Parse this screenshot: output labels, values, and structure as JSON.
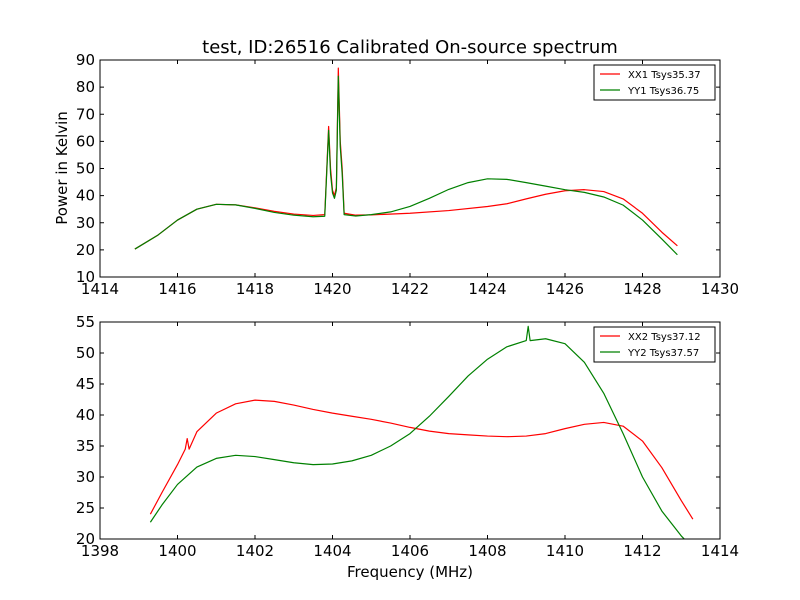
{
  "chart_data": [
    {
      "type": "line",
      "title": "test, ID:26516 Calibrated On-source spectrum",
      "xlabel": "",
      "ylabel": "Power in Kelvin",
      "xlim": [
        1414,
        1430
      ],
      "ylim": [
        10,
        90
      ],
      "xticks": [
        1414,
        1416,
        1418,
        1420,
        1422,
        1424,
        1426,
        1428,
        1430
      ],
      "yticks": [
        10,
        20,
        30,
        40,
        50,
        60,
        70,
        80,
        90
      ],
      "legend_position": "top-right",
      "series": [
        {
          "name": "XX1 Tsys35.37",
          "color": "#ff0000",
          "points": [
            [
              1414.9,
              20.3
            ],
            [
              1415.5,
              25.5
            ],
            [
              1416.0,
              31.0
            ],
            [
              1416.5,
              35.0
            ],
            [
              1417.0,
              36.8
            ],
            [
              1417.5,
              36.6
            ],
            [
              1418.0,
              35.5
            ],
            [
              1418.5,
              34.2
            ],
            [
              1419.0,
              33.2
            ],
            [
              1419.5,
              32.7
            ],
            [
              1419.8,
              33.0
            ],
            [
              1419.9,
              65.5
            ],
            [
              1419.95,
              50.0
            ],
            [
              1420.0,
              42.0
            ],
            [
              1420.05,
              40.0
            ],
            [
              1420.1,
              43.0
            ],
            [
              1420.15,
              87.0
            ],
            [
              1420.2,
              60.0
            ],
            [
              1420.25,
              50.0
            ],
            [
              1420.3,
              33.5
            ],
            [
              1420.6,
              32.8
            ],
            [
              1421.0,
              32.9
            ],
            [
              1422.0,
              33.5
            ],
            [
              1423.0,
              34.5
            ],
            [
              1424.0,
              36.0
            ],
            [
              1424.5,
              37.0
            ],
            [
              1425.0,
              38.8
            ],
            [
              1425.5,
              40.5
            ],
            [
              1426.0,
              41.8
            ],
            [
              1426.5,
              42.2
            ],
            [
              1427.0,
              41.5
            ],
            [
              1427.5,
              38.8
            ],
            [
              1428.0,
              33.5
            ],
            [
              1428.5,
              26.5
            ],
            [
              1428.9,
              21.5
            ]
          ]
        },
        {
          "name": "YY1 Tsys36.75",
          "color": "#008000",
          "points": [
            [
              1414.9,
              20.3
            ],
            [
              1415.5,
              25.5
            ],
            [
              1416.0,
              31.0
            ],
            [
              1416.5,
              35.0
            ],
            [
              1417.0,
              36.8
            ],
            [
              1417.5,
              36.6
            ],
            [
              1418.0,
              35.3
            ],
            [
              1418.5,
              33.8
            ],
            [
              1419.0,
              32.8
            ],
            [
              1419.5,
              32.2
            ],
            [
              1419.8,
              32.4
            ],
            [
              1419.9,
              64.0
            ],
            [
              1419.95,
              48.0
            ],
            [
              1420.0,
              41.0
            ],
            [
              1420.05,
              39.0
            ],
            [
              1420.1,
              42.0
            ],
            [
              1420.15,
              84.0
            ],
            [
              1420.2,
              58.0
            ],
            [
              1420.25,
              48.0
            ],
            [
              1420.3,
              33.0
            ],
            [
              1420.6,
              32.5
            ],
            [
              1421.0,
              33.0
            ],
            [
              1421.5,
              34.0
            ],
            [
              1422.0,
              36.0
            ],
            [
              1422.5,
              39.0
            ],
            [
              1423.0,
              42.3
            ],
            [
              1423.5,
              44.8
            ],
            [
              1424.0,
              46.2
            ],
            [
              1424.5,
              46.0
            ],
            [
              1425.0,
              44.8
            ],
            [
              1425.5,
              43.5
            ],
            [
              1426.0,
              42.2
            ],
            [
              1426.5,
              41.2
            ],
            [
              1427.0,
              39.5
            ],
            [
              1427.5,
              36.5
            ],
            [
              1428.0,
              31.0
            ],
            [
              1428.5,
              24.0
            ],
            [
              1428.9,
              18.2
            ]
          ]
        }
      ]
    },
    {
      "type": "line",
      "title": "",
      "xlabel": "Frequency (MHz)",
      "ylabel": "",
      "xlim": [
        1398,
        1414
      ],
      "ylim": [
        20,
        55
      ],
      "xticks": [
        1398,
        1400,
        1402,
        1404,
        1406,
        1408,
        1410,
        1412,
        1414
      ],
      "yticks": [
        20,
        25,
        30,
        35,
        40,
        45,
        50,
        55
      ],
      "legend_position": "top-right",
      "series": [
        {
          "name": "XX2 Tsys37.12",
          "color": "#ff0000",
          "points": [
            [
              1399.3,
              24.0
            ],
            [
              1399.6,
              27.5
            ],
            [
              1400.0,
              32.0
            ],
            [
              1400.2,
              34.5
            ],
            [
              1400.25,
              36.2
            ],
            [
              1400.3,
              34.5
            ],
            [
              1400.5,
              37.3
            ],
            [
              1401.0,
              40.3
            ],
            [
              1401.5,
              41.8
            ],
            [
              1402.0,
              42.4
            ],
            [
              1402.5,
              42.2
            ],
            [
              1403.0,
              41.6
            ],
            [
              1403.5,
              40.9
            ],
            [
              1404.0,
              40.3
            ],
            [
              1404.5,
              39.8
            ],
            [
              1405.0,
              39.3
            ],
            [
              1405.5,
              38.7
            ],
            [
              1406.0,
              38.0
            ],
            [
              1406.5,
              37.4
            ],
            [
              1407.0,
              37.0
            ],
            [
              1407.5,
              36.8
            ],
            [
              1408.0,
              36.6
            ],
            [
              1408.5,
              36.5
            ],
            [
              1409.0,
              36.6
            ],
            [
              1409.5,
              37.0
            ],
            [
              1410.0,
              37.8
            ],
            [
              1410.5,
              38.5
            ],
            [
              1411.0,
              38.8
            ],
            [
              1411.5,
              38.2
            ],
            [
              1412.0,
              35.8
            ],
            [
              1412.5,
              31.5
            ],
            [
              1413.0,
              26.2
            ],
            [
              1413.3,
              23.2
            ]
          ]
        },
        {
          "name": "YY2 Tsys37.57",
          "color": "#008000",
          "points": [
            [
              1399.3,
              22.7
            ],
            [
              1399.6,
              25.5
            ],
            [
              1400.0,
              28.8
            ],
            [
              1400.5,
              31.6
            ],
            [
              1401.0,
              33.0
            ],
            [
              1401.5,
              33.5
            ],
            [
              1402.0,
              33.3
            ],
            [
              1402.5,
              32.8
            ],
            [
              1403.0,
              32.3
            ],
            [
              1403.5,
              32.0
            ],
            [
              1404.0,
              32.1
            ],
            [
              1404.5,
              32.6
            ],
            [
              1405.0,
              33.5
            ],
            [
              1405.5,
              35.0
            ],
            [
              1406.0,
              37.0
            ],
            [
              1406.5,
              39.8
            ],
            [
              1407.0,
              43.0
            ],
            [
              1407.5,
              46.3
            ],
            [
              1408.0,
              49.0
            ],
            [
              1408.5,
              51.0
            ],
            [
              1409.0,
              52.0
            ],
            [
              1409.05,
              54.3
            ],
            [
              1409.1,
              52.0
            ],
            [
              1409.5,
              52.3
            ],
            [
              1410.0,
              51.5
            ],
            [
              1410.5,
              48.5
            ],
            [
              1411.0,
              43.5
            ],
            [
              1411.5,
              37.0
            ],
            [
              1412.0,
              30.0
            ],
            [
              1412.5,
              24.5
            ],
            [
              1413.0,
              20.5
            ],
            [
              1413.2,
              19.2
            ]
          ]
        }
      ]
    }
  ]
}
